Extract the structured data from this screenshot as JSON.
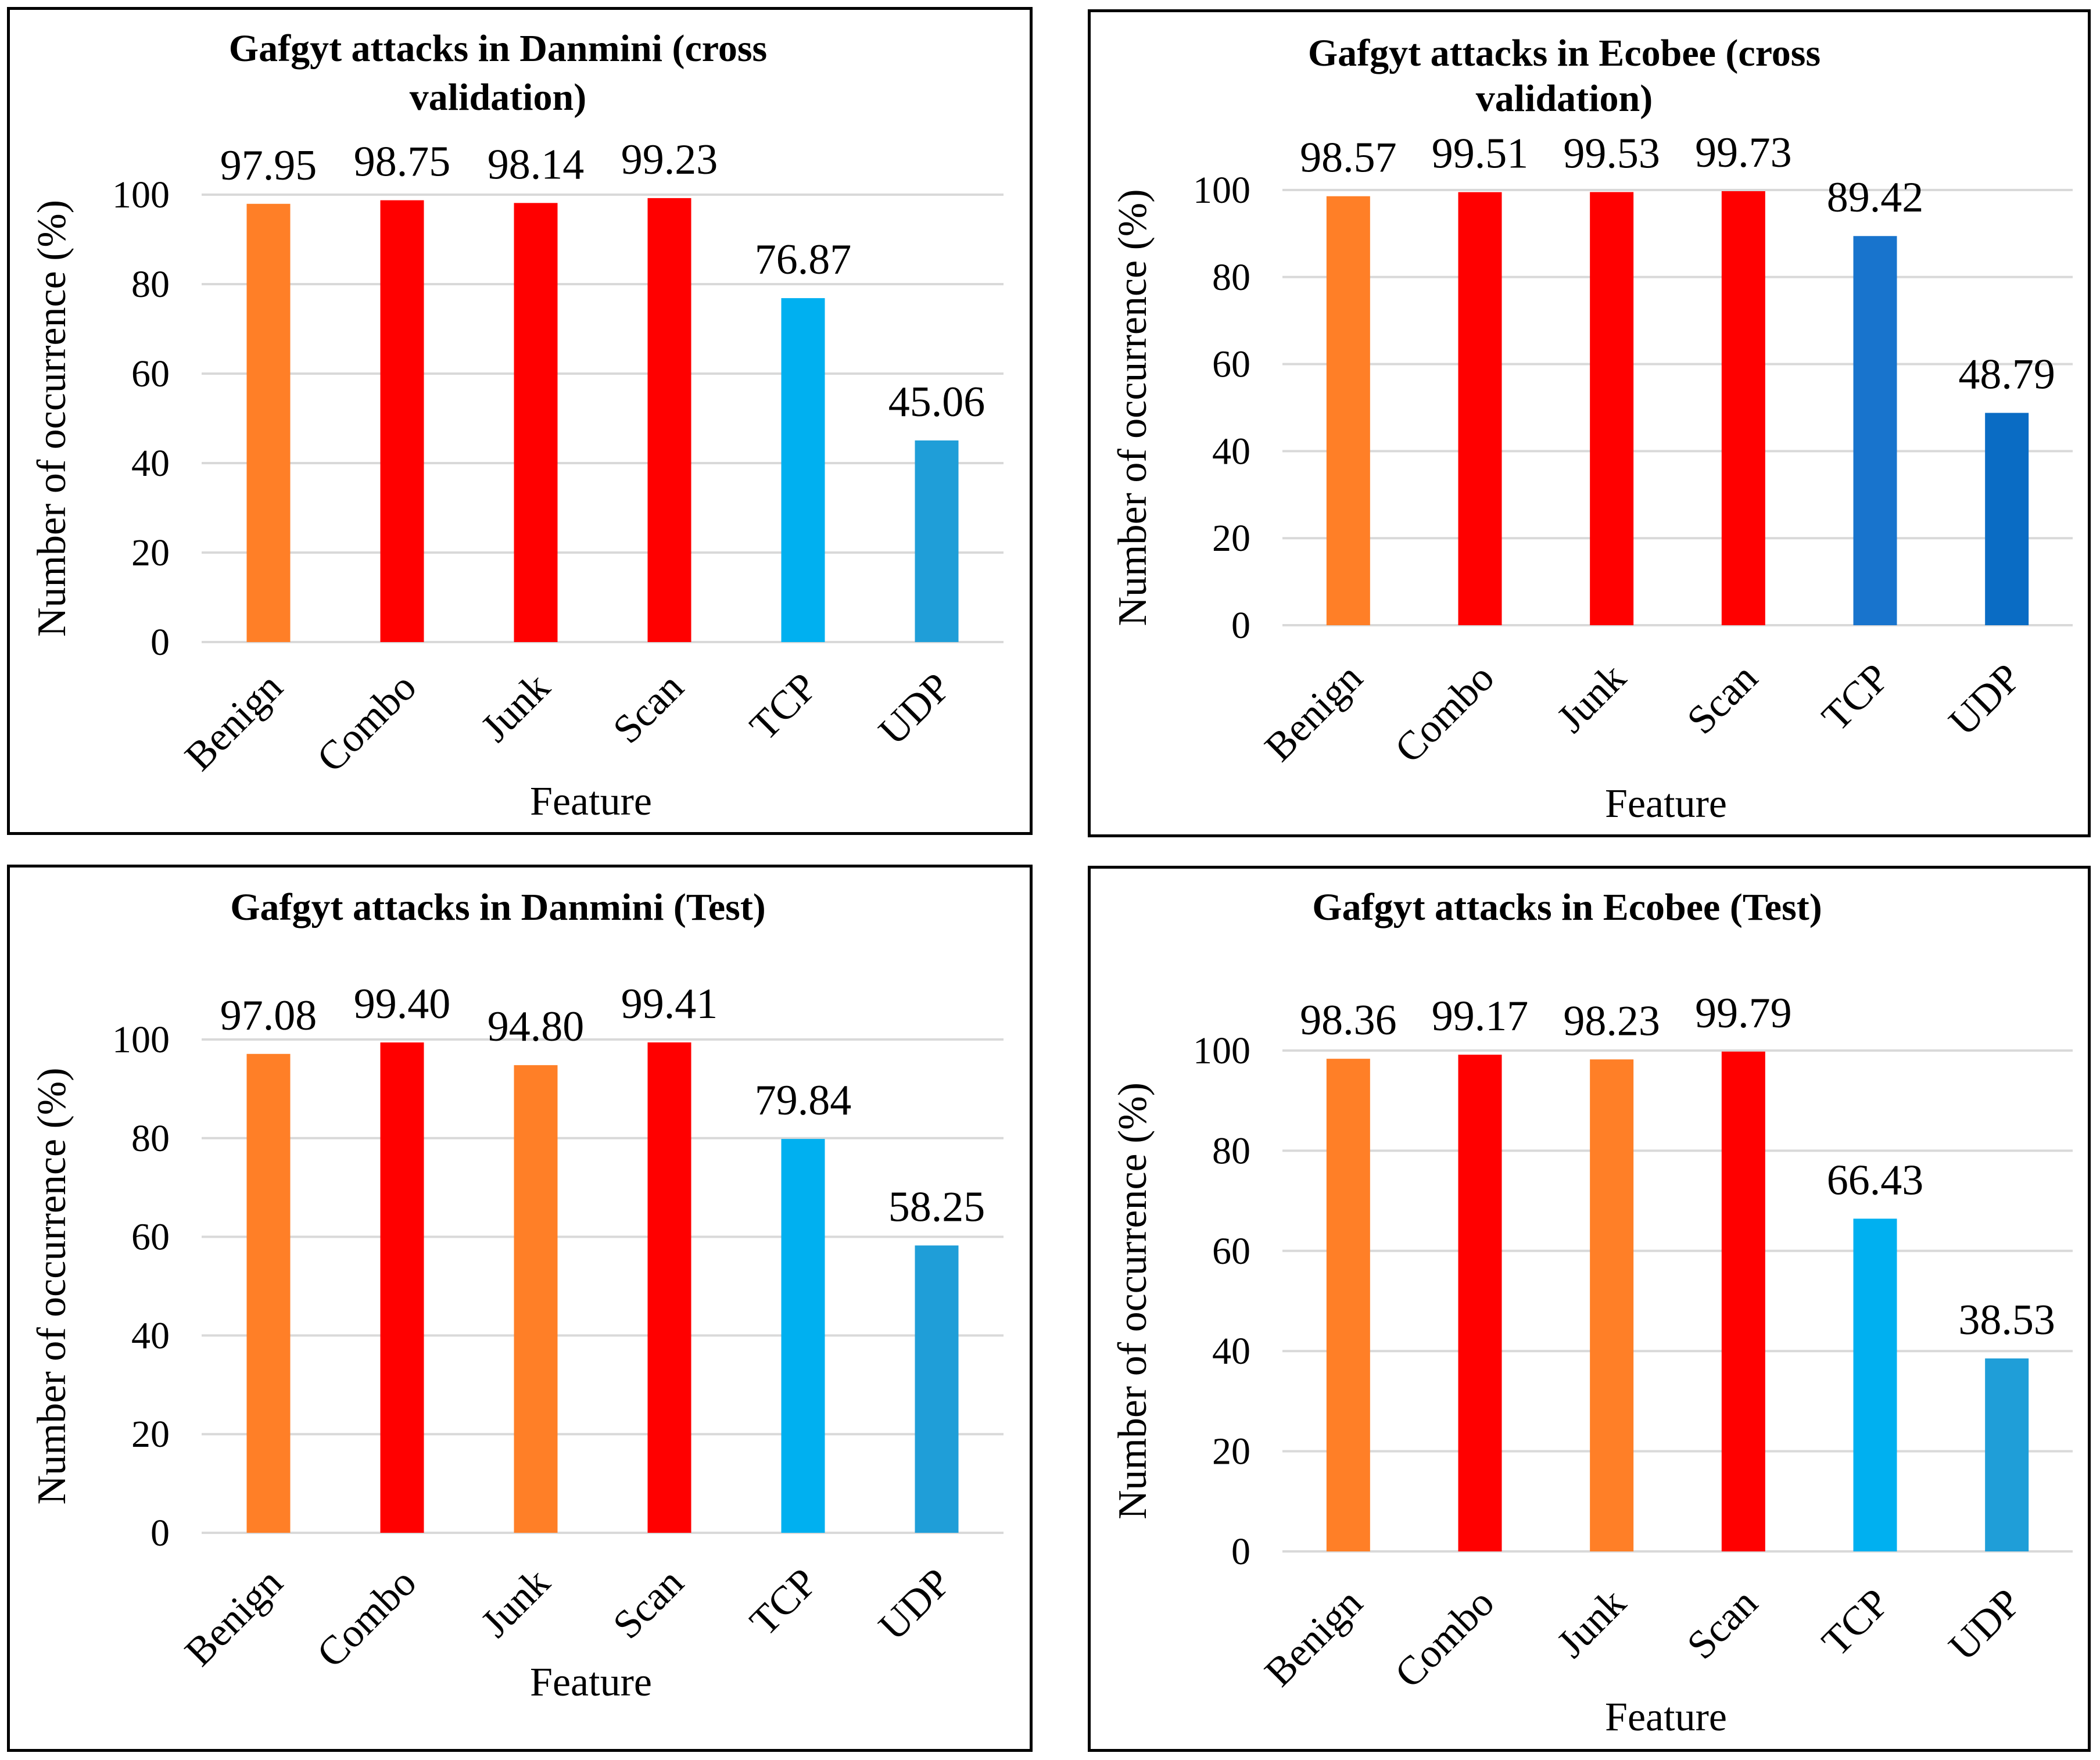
{
  "chart_data": [
    {
      "type": "bar",
      "title": "Gafgyt attacks in Danmini (cross validation)",
      "title_lines": [
        "Gafgyt attacks in Danmini (cross",
        "validation)"
      ],
      "categories": [
        "Benign",
        "Combo",
        "Junk",
        "Scan",
        "TCP",
        "UDP"
      ],
      "values": [
        97.95,
        98.75,
        98.14,
        99.23,
        76.87,
        45.06
      ],
      "value_labels": [
        "97.95",
        "98.75",
        "98.14",
        "99.23",
        "76.87",
        "45.06"
      ],
      "colors": [
        "#FF7F27",
        "#FF0000",
        "#FF0000",
        "#FF0000",
        "#00B0F0",
        "#1F9ED8"
      ],
      "xlabel": "Feature",
      "ylabel": "Number of occurrence (%)",
      "ylim": [
        0,
        100
      ],
      "yticks": [
        0,
        20,
        40,
        60,
        80,
        100
      ],
      "grid": true
    },
    {
      "type": "bar",
      "title": "Gafgyt attacks in Ecobee (cross validation)",
      "title_lines": [
        "Gafgyt attacks in Ecobee (cross",
        "validation)"
      ],
      "categories": [
        "Benign",
        "Combo",
        "Junk",
        "Scan",
        "TCP",
        "UDP"
      ],
      "values": [
        98.57,
        99.51,
        99.53,
        99.73,
        89.42,
        48.79
      ],
      "value_labels": [
        "98.57",
        "99.51",
        "99.53",
        "99.73",
        "89.42",
        "48.79"
      ],
      "colors": [
        "#FF7F27",
        "#FF0000",
        "#FF0000",
        "#FF0000",
        "#1874CD",
        "#0A6CC4"
      ],
      "xlabel": "Feature",
      "ylabel": "Number of occurrence (%)",
      "ylim": [
        0,
        100
      ],
      "yticks": [
        0,
        20,
        40,
        60,
        80,
        100
      ],
      "grid": true
    },
    {
      "type": "bar",
      "title": "Gafgyt attacks in Danmini (Test)",
      "title_lines": [
        "Gafgyt attacks in Danmini (Test)"
      ],
      "categories": [
        "Benign",
        "Combo",
        "Junk",
        "Scan",
        "TCP",
        "UDP"
      ],
      "values": [
        97.08,
        99.4,
        94.8,
        99.41,
        79.84,
        58.25
      ],
      "value_labels": [
        "97.08",
        "99.40",
        "94.80",
        "99.41",
        "79.84",
        "58.25"
      ],
      "colors": [
        "#FF7F27",
        "#FF0000",
        "#FF7F27",
        "#FF0000",
        "#00B0F0",
        "#1F9ED8"
      ],
      "xlabel": "Feature",
      "ylabel": "Number of occurrence (%)",
      "ylim": [
        0,
        100
      ],
      "yticks": [
        0,
        20,
        40,
        60,
        80,
        100
      ],
      "grid": true
    },
    {
      "type": "bar",
      "title": "Gafgyt attacks in Ecobee (Test)",
      "title_lines": [
        "Gafgyt attacks in Ecobee (Test)"
      ],
      "categories": [
        "Benign",
        "Combo",
        "Junk",
        "Scan",
        "TCP",
        "UDP"
      ],
      "values": [
        98.36,
        99.17,
        98.23,
        99.79,
        66.43,
        38.53
      ],
      "value_labels": [
        "98.36",
        "99.17",
        "98.23",
        "99.79",
        "66.43",
        "38.53"
      ],
      "colors": [
        "#FF7F27",
        "#FF0000",
        "#FF7F27",
        "#FF0000",
        "#00B0F0",
        "#1F9ED8"
      ],
      "xlabel": "Feature",
      "ylabel": "Number of occurrence (%)",
      "ylim": [
        0,
        100
      ],
      "yticks": [
        0,
        20,
        40,
        60,
        80,
        100
      ],
      "grid": true
    }
  ]
}
